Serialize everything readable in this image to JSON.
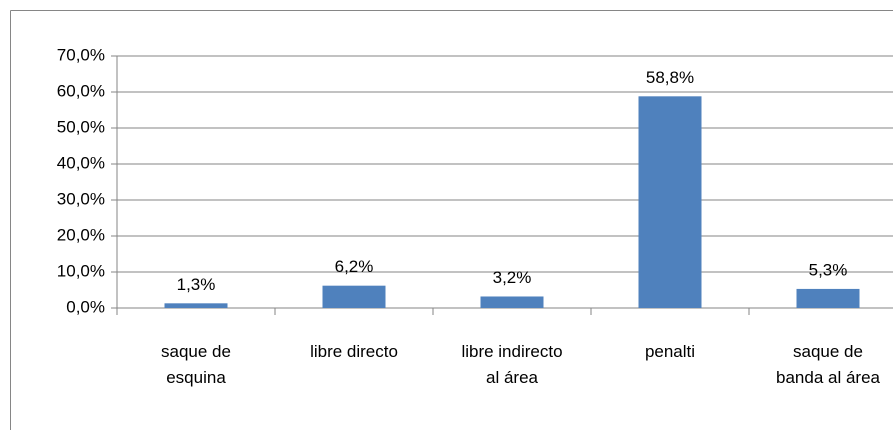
{
  "chart_data": {
    "type": "bar",
    "categories": [
      "saque de\nesquina",
      "libre directo",
      "libre indirecto\nal área",
      "penalti",
      "saque de\nbanda al área"
    ],
    "values": [
      1.3,
      6.2,
      3.2,
      58.8,
      5.3
    ],
    "value_labels": [
      "1,3%",
      "6,2%",
      "3,2%",
      "58,8%",
      "5,3%"
    ],
    "color": "#4f81bd",
    "ylim": [
      0,
      70
    ],
    "yticks": [
      {
        "value": 0,
        "label": "0,0%"
      },
      {
        "value": 10,
        "label": "10,0%"
      },
      {
        "value": 20,
        "label": "20,0%"
      },
      {
        "value": 30,
        "label": "30,0%"
      },
      {
        "value": 40,
        "label": "40,0%"
      },
      {
        "value": 50,
        "label": "50,0%"
      },
      {
        "value": 60,
        "label": "60,0%"
      },
      {
        "value": 70,
        "label": "70,0%"
      }
    ],
    "grid": true
  }
}
